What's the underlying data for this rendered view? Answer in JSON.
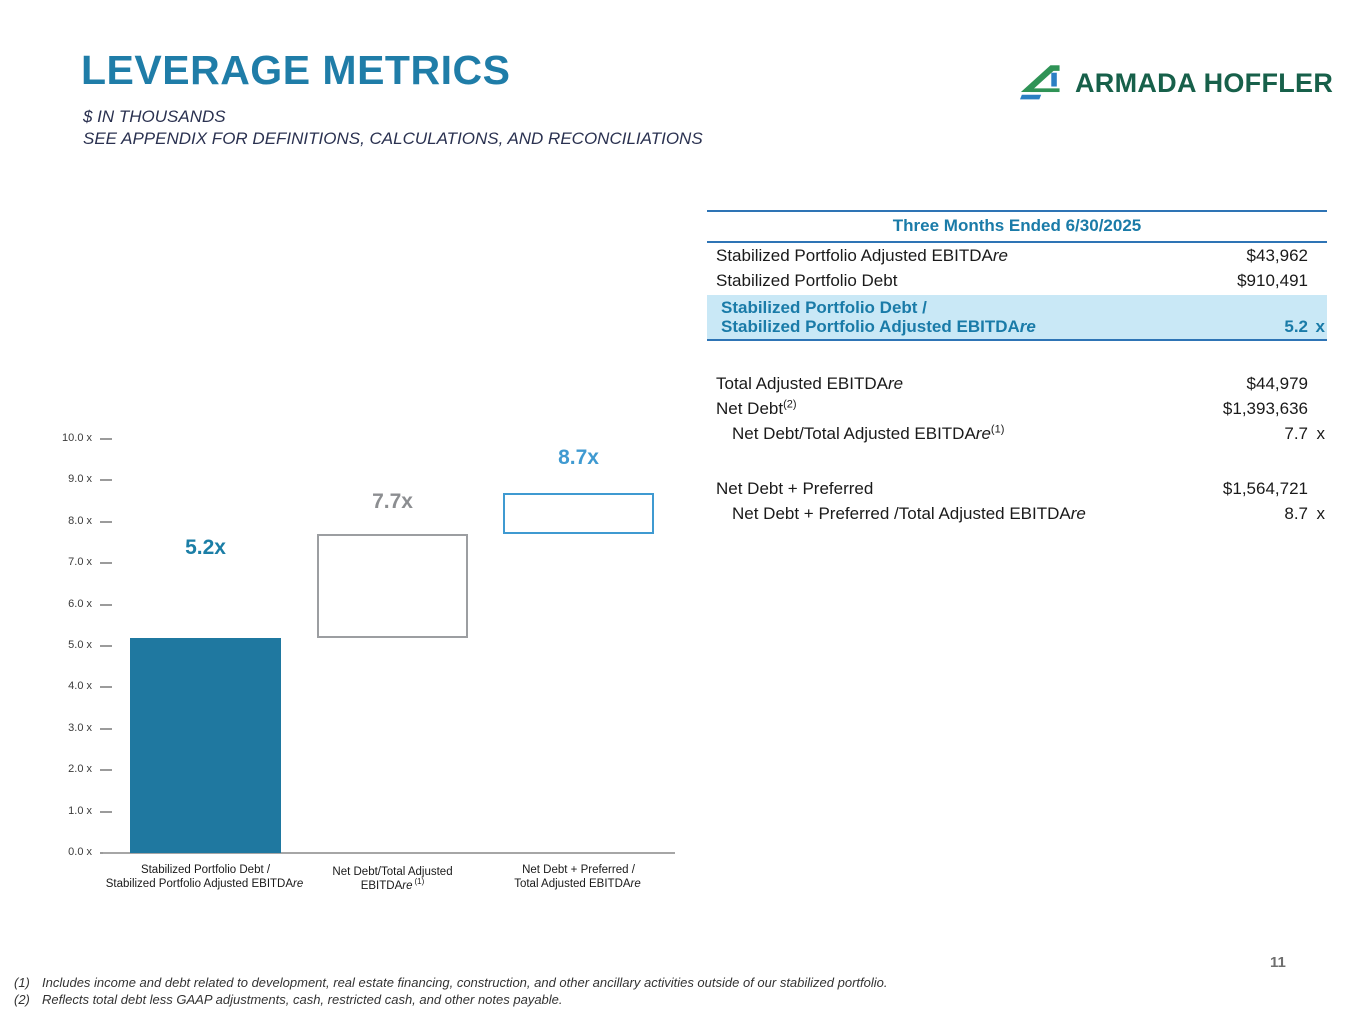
{
  "slide": {
    "title": "LEVERAGE METRICS",
    "subtitle_line1": "$ IN THOUSANDS",
    "subtitle_line2": "SEE APPENDIX FOR DEFINITIONS, CALCULATIONS, AND RECONCILIATIONS",
    "page_number": "11"
  },
  "logo": {
    "text": "ARMADA HOFFLER",
    "icon": "armada-hoffler-triangle-logo"
  },
  "table": {
    "header": "Three Months Ended 6/30/2025",
    "rows": [
      {
        "pre": "Stabilized Portfolio Adjusted EBITDA",
        "it": "re",
        "sup": "",
        "value": "$43,962",
        "unit": ""
      },
      {
        "pre": "Stabilized Portfolio Debt",
        "it": "",
        "sup": "",
        "value": "$910,491",
        "unit": ""
      },
      {
        "line1": "Stabilized Portfolio Debt /",
        "line2_pre": "Stabilized Portfolio Adjusted EBITDA",
        "line2_it": "re",
        "value": "5.2",
        "unit": "x"
      },
      {
        "pre": "Total Adjusted EBITDA",
        "it": "re",
        "sup": "",
        "value": "$44,979",
        "unit": ""
      },
      {
        "pre": "Net Debt",
        "it": "",
        "sup": "(2)",
        "value": "$1,393,636",
        "unit": ""
      },
      {
        "pre": "Net Debt/Total Adjusted EBITDA",
        "it": "re",
        "sup": "(1)",
        "value": "7.7",
        "unit": "x"
      },
      {
        "pre": "Net Debt + Preferred",
        "it": "",
        "sup": "",
        "value": "$1,564,721",
        "unit": ""
      },
      {
        "pre": "Net Debt + Preferred /Total Adjusted EBITDA",
        "it": "re",
        "sup": "",
        "value": "8.7",
        "unit": "x"
      }
    ]
  },
  "chart_data": {
    "type": "bar",
    "variant": "incremental-outline-bars",
    "title": "",
    "xlabel": "",
    "ylabel": "",
    "ylim": [
      0,
      10
    ],
    "ytick_labels": [
      "0.0 x",
      "1.0 x",
      "2.0 x",
      "3.0 x",
      "4.0 x",
      "5.0 x",
      "6.0 x",
      "7.0 x",
      "8.0 x",
      "9.0 x",
      "10.0 x"
    ],
    "values": [
      5.2,
      7.7,
      8.7
    ],
    "bars": [
      {
        "label": "5.2x",
        "from": 0,
        "to": 5.2,
        "style": "filled",
        "color": "#1f78a0",
        "label_color": "#1b7ea6"
      },
      {
        "label": "7.7x",
        "from": 5.2,
        "to": 7.7,
        "style": "outline",
        "color": "#9c9ea1",
        "label_color": "#8c8e91"
      },
      {
        "label": "8.7x",
        "from": 7.7,
        "to": 8.7,
        "style": "outline",
        "color": "#3f9ad1",
        "label_color": "#3f9ad1"
      }
    ],
    "categories": [
      {
        "line1": "Stabilized Portfolio Debt /",
        "line2_pre": "Stabilized Portfolio Adjusted EBITDA",
        "line2_it": "re",
        "line2_sup": ""
      },
      {
        "line1": "Net Debt/Total Adjusted",
        "line2_pre": "EBITDA",
        "line2_it": "re",
        "line2_sup": "(1)"
      },
      {
        "line1": "Net Debt + Preferred /",
        "line2_pre": "Total Adjusted EBITDA",
        "line2_it": "re",
        "line2_sup": ""
      }
    ],
    "grid": false,
    "legend": false
  },
  "footnotes": [
    {
      "num": "(1)",
      "text": "Includes income and debt related to development, real estate financing, construction, and other ancillary activities outside of our stabilized portfolio."
    },
    {
      "num": "(2)",
      "text": "Reflects total debt less GAAP adjustments, cash, restricted cash, and other notes payable."
    }
  ],
  "colors": {
    "accent_teal": "#1f7da8",
    "table_border_blue": "#2e74b5",
    "highlight_bg": "#c9e8f6",
    "bar_fill": "#1f78a0",
    "outline_gray": "#9c9ea1",
    "label_gray": "#8c8e91",
    "outline_blue": "#3f9ad1",
    "logo_green": "#17604a",
    "logo_icon_green": "#2f9356",
    "logo_icon_blue": "#2b7fc3",
    "navy_text": "#2a3150"
  }
}
